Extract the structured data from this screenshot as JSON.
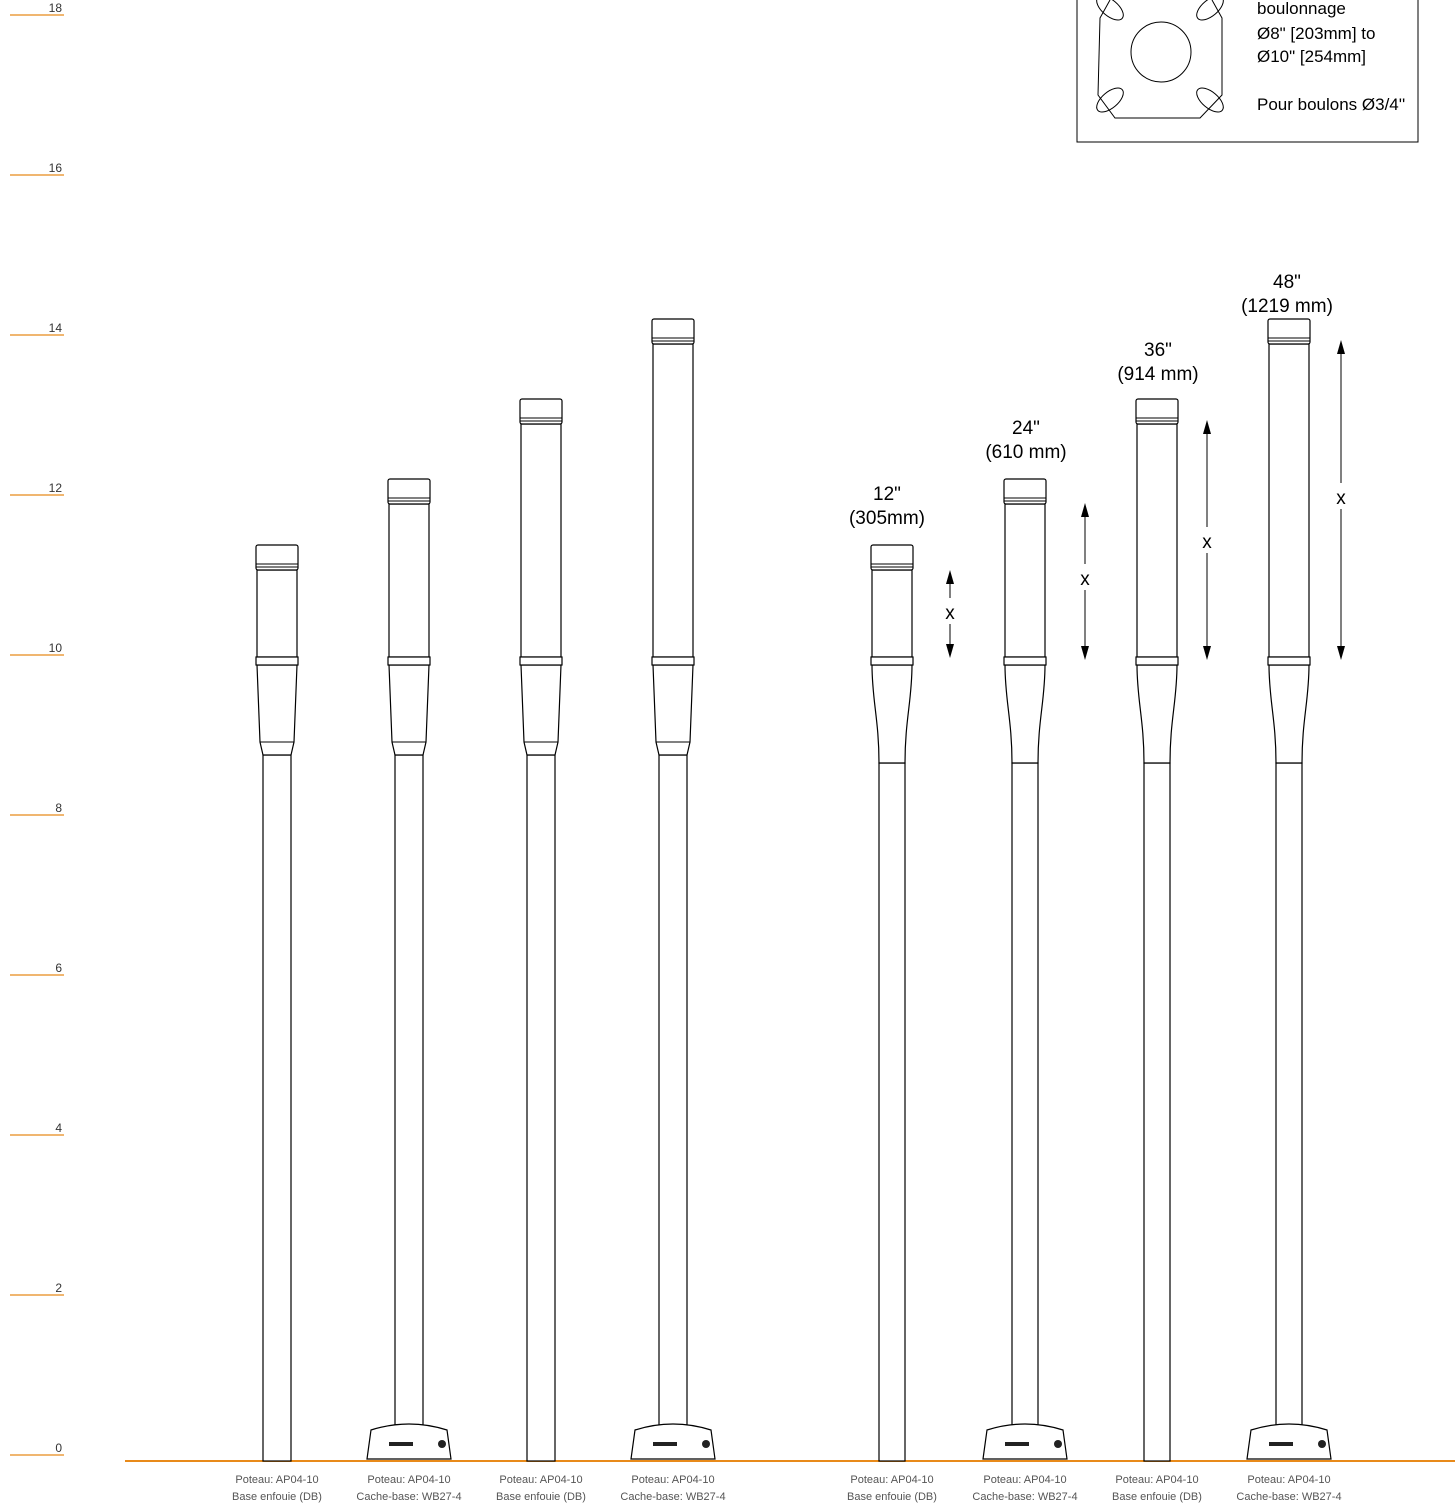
{
  "scale": {
    "labels": [
      "18",
      "16",
      "14",
      "12",
      "10",
      "8",
      "6",
      "4",
      "2",
      "0"
    ]
  },
  "note": {
    "lines": [
      "boulonnage",
      "Ø8\" [203mm] to",
      "Ø10\" [254mm]",
      "Pour boulons Ø3/4''"
    ]
  },
  "dimensions": [
    {
      "inches": "12\"",
      "mm": "(305mm)",
      "mark": "x"
    },
    {
      "inches": "24\"",
      "mm": "(610 mm)",
      "mark": "x"
    },
    {
      "inches": "36\"",
      "mm": "(914 mm)",
      "mark": "x"
    },
    {
      "inches": "48\"",
      "mm": "(1219 mm)",
      "mark": "x"
    }
  ],
  "poles": [
    {
      "caption": [
        "Poteau: AP04-10",
        "Base enfouie (DB)"
      ]
    },
    {
      "caption": [
        "Poteau: AP04-10",
        "Cache-base: WB27-4"
      ]
    },
    {
      "caption": [
        "Poteau: AP04-10",
        "Base enfouie (DB)"
      ]
    },
    {
      "caption": [
        "Poteau: AP04-10",
        "Cache-base: WB27-4"
      ]
    },
    {
      "caption": [
        "Poteau: AP04-10",
        "Base enfouie (DB)"
      ]
    },
    {
      "caption": [
        "Poteau: AP04-10",
        "Cache-base: WB27-4"
      ]
    },
    {
      "caption": [
        "Poteau: AP04-10",
        "Base enfouie (DB)"
      ]
    },
    {
      "caption": [
        "Poteau: AP04-10",
        "Cache-base: WB27-4"
      ]
    }
  ]
}
